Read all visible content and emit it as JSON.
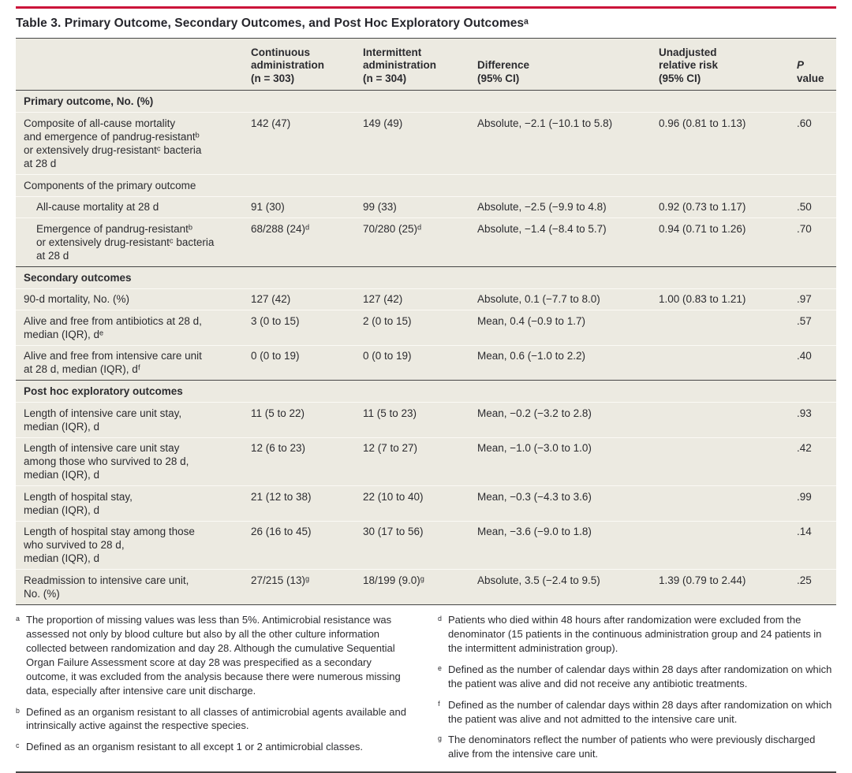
{
  "title": "Table 3. Primary Outcome, Secondary Outcomes, and Post Hoc Exploratory Outcomesᵃ",
  "colors": {
    "accent_red": "#CB1339",
    "row_band": "#ECEAE1",
    "text": "#2B2B2F",
    "rule_dark": "#454545"
  },
  "table": {
    "headers": [
      "",
      "Continuous\nadministration\n(n = 303)",
      "Intermittent\nadministration\n(n = 304)",
      "Difference\n(95% CI)",
      "Unadjusted\nrelative risk\n(95% CI)"
    ],
    "p_header": {
      "italic": "P",
      "rest": " value"
    },
    "rows": [
      {
        "type": "section",
        "label": "Primary outcome, No. (%)"
      },
      {
        "type": "data",
        "indent": false,
        "label": "Composite of all-cause mortality\nand emergence of pandrug-resistantᵇ\nor extensively drug-resistantᶜ bacteria\nat 28 d",
        "continuous": "142 (47)",
        "intermittent": "149 (49)",
        "difference": "Absolute, −2.1 (−10.1 to 5.8)",
        "rr": "0.96 (0.81 to 1.13)",
        "p": ".60"
      },
      {
        "type": "subsection",
        "label": "Components of the primary outcome"
      },
      {
        "type": "data",
        "indent": true,
        "label": "All-cause mortality at 28 d",
        "continuous": "91 (30)",
        "intermittent": "99 (33)",
        "difference": "Absolute, −2.5 (−9.9 to 4.8)",
        "rr": "0.92 (0.73 to 1.17)",
        "p": ".50"
      },
      {
        "type": "data",
        "indent": true,
        "label": "Emergence of pandrug-resistantᵇ\nor extensively drug-resistantᶜ bacteria\nat 28 d",
        "continuous": "68/288 (24)ᵈ",
        "intermittent": "70/280 (25)ᵈ",
        "difference": "Absolute, −1.4 (−8.4 to 5.7)",
        "rr": "0.94 (0.71 to 1.26)",
        "p": ".70"
      },
      {
        "type": "section",
        "label": "Secondary outcomes"
      },
      {
        "type": "data",
        "indent": false,
        "label": "90-d mortality, No. (%)",
        "continuous": "127 (42)",
        "intermittent": "127 (42)",
        "difference": "Absolute, 0.1 (−7.7 to 8.0)",
        "rr": "1.00 (0.83 to 1.21)",
        "p": ".97"
      },
      {
        "type": "data",
        "indent": false,
        "label": "Alive and free from antibiotics at 28 d,\nmedian (IQR), dᵉ",
        "continuous": "3 (0 to 15)",
        "intermittent": "2 (0 to 15)",
        "difference": "Mean, 0.4 (−0.9 to 1.7)",
        "rr": "",
        "p": ".57"
      },
      {
        "type": "data",
        "indent": false,
        "label": "Alive and free from intensive care unit\nat 28 d, median (IQR), dᶠ",
        "continuous": "0 (0 to 19)",
        "intermittent": "0 (0 to 19)",
        "difference": "Mean, 0.6 (−1.0 to 2.2)",
        "rr": "",
        "p": ".40"
      },
      {
        "type": "section",
        "label": "Post hoc exploratory outcomes"
      },
      {
        "type": "data",
        "indent": false,
        "label": "Length of intensive care unit stay,\nmedian (IQR), d",
        "continuous": "11 (5 to 22)",
        "intermittent": "11 (5 to 23)",
        "difference": "Mean, −0.2 (−3.2 to 2.8)",
        "rr": "",
        "p": ".93"
      },
      {
        "type": "data",
        "indent": false,
        "label": "Length of intensive care unit stay\namong those who survived to 28 d,\nmedian (IQR), d",
        "continuous": "12 (6 to 23)",
        "intermittent": "12 (7 to 27)",
        "difference": "Mean, −1.0 (−3.0 to 1.0)",
        "rr": "",
        "p": ".42"
      },
      {
        "type": "data",
        "indent": false,
        "label": "Length of hospital stay,\nmedian (IQR), d",
        "continuous": "21 (12 to 38)",
        "intermittent": "22 (10 to 40)",
        "difference": "Mean, −0.3 (−4.3 to 3.6)",
        "rr": "",
        "p": ".99"
      },
      {
        "type": "data",
        "indent": false,
        "label": "Length of hospital stay among those\nwho survived to 28 d,\nmedian (IQR), d",
        "continuous": "26 (16 to 45)",
        "intermittent": "30 (17 to 56)",
        "difference": "Mean, −3.6 (−9.0 to 1.8)",
        "rr": "",
        "p": ".14"
      },
      {
        "type": "data",
        "indent": false,
        "label": "Readmission to intensive care unit,\nNo. (%)",
        "continuous": "27/215 (13)ᵍ",
        "intermittent": "18/199 (9.0)ᵍ",
        "difference": "Absolute, 3.5 (−2.4 to 9.5)",
        "rr": "1.39 (0.79 to 2.44)",
        "p": ".25"
      }
    ]
  },
  "footnotes": {
    "left": [
      {
        "marker": "ᵃ",
        "text": "The proportion of missing values was less than 5%. Antimicrobial resistance was assessed not only by blood culture but also by all the other culture information collected between randomization and day 28. Although the cumulative Sequential Organ Failure Assessment score at day 28 was prespecified as a secondary outcome, it was excluded from the analysis because there were numerous missing data, especially after intensive care unit discharge."
      },
      {
        "marker": "ᵇ",
        "text": "Defined as an organism resistant to all classes of antimicrobial agents available and intrinsically active against the respective species."
      },
      {
        "marker": "ᶜ",
        "text": "Defined as an organism resistant to all except 1 or 2 antimicrobial classes."
      }
    ],
    "right": [
      {
        "marker": "ᵈ",
        "text": "Patients who died within 48 hours after randomization were excluded from the denominator (15 patients in the continuous administration group and 24 patients in the intermittent administration group)."
      },
      {
        "marker": "ᵉ",
        "text": "Defined as the number of calendar days within 28 days after randomization on which the patient was alive and did not receive any antibiotic treatments."
      },
      {
        "marker": "ᶠ",
        "text": "Defined as the number of calendar days within 28 days after randomization on which the patient was alive and not admitted to the intensive care unit."
      },
      {
        "marker": "ᵍ",
        "text": "The denominators reflect the number of patients who were previously discharged alive from the intensive care unit."
      }
    ]
  }
}
